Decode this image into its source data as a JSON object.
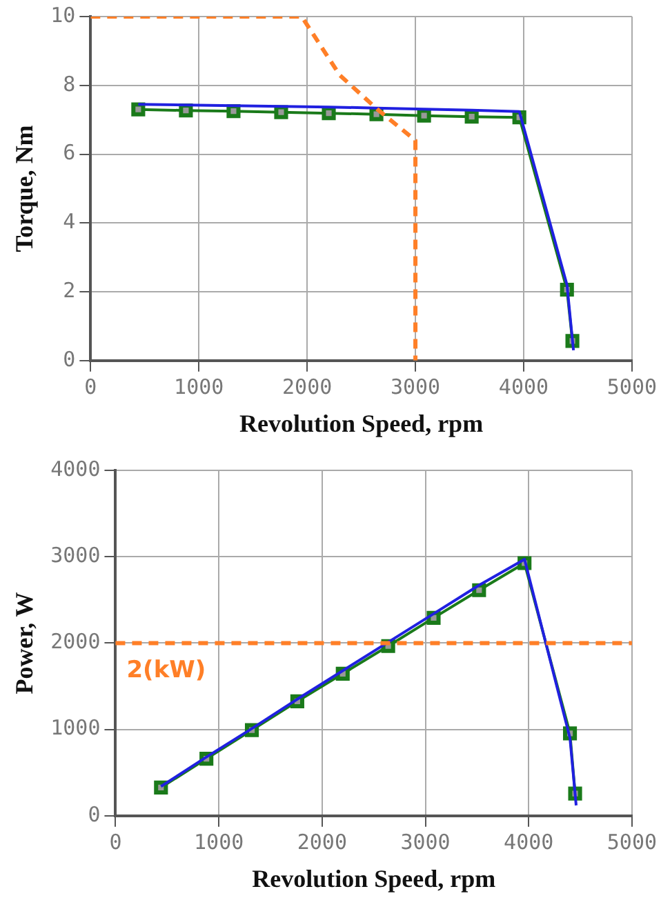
{
  "chart_data": [
    {
      "type": "line",
      "xlabel": "Revolution Speed, rpm",
      "ylabel": "Torque, Nm",
      "xlim": [
        0,
        5000
      ],
      "xticks": [
        0,
        1000,
        2000,
        3000,
        4000,
        5000
      ],
      "ylim": [
        0,
        10
      ],
      "yticks": [
        0,
        2,
        4,
        6,
        8,
        10
      ],
      "grid": true,
      "legend": false,
      "series": [
        {
          "color": "#ff7f27",
          "line_style": "dashed",
          "marker": "none",
          "x": [
            0,
            1950,
            2300,
            2650,
            3000,
            3000
          ],
          "values": [
            10,
            10,
            8.3,
            7.3,
            6.4,
            0
          ]
        },
        {
          "color": "#2020e0",
          "marker": "none",
          "x": [
            440,
            880,
            1320,
            1760,
            2200,
            2640,
            3080,
            3520,
            3960,
            4400,
            4460
          ],
          "values": [
            7.45,
            7.43,
            7.41,
            7.39,
            7.37,
            7.34,
            7.31,
            7.28,
            7.24,
            2.2,
            0.3
          ]
        },
        {
          "color": "#1a7a1a",
          "marker": "square",
          "x": [
            440,
            880,
            1320,
            1760,
            2200,
            2640,
            3080,
            3520,
            3960,
            4400,
            4450
          ],
          "values": [
            7.3,
            7.27,
            7.25,
            7.22,
            7.19,
            7.16,
            7.12,
            7.09,
            7.07,
            2.06,
            0.57
          ]
        }
      ]
    },
    {
      "type": "line",
      "xlabel": "Revolution Speed, rpm",
      "ylabel": "Power, W",
      "xlim": [
        0,
        5000
      ],
      "xticks": [
        0,
        1000,
        2000,
        3000,
        4000,
        5000
      ],
      "ylim": [
        0,
        4000
      ],
      "yticks": [
        0,
        1000,
        2000,
        3000,
        4000
      ],
      "grid": true,
      "legend": false,
      "ref_lines": [
        {
          "axis": "y",
          "value": 2000,
          "label": "2(kW)",
          "color": "#ff7f27",
          "line_style": "dashed"
        }
      ],
      "series": [
        {
          "color": "#2020e0",
          "marker": "none",
          "x": [
            440,
            880,
            1320,
            1760,
            2200,
            2640,
            3080,
            3520,
            3960,
            4400,
            4460
          ],
          "values": [
            340,
            680,
            1010,
            1350,
            1680,
            2010,
            2340,
            2670,
            2970,
            900,
            120
          ]
        },
        {
          "color": "#1a7a1a",
          "marker": "square",
          "x": [
            440,
            880,
            1320,
            1760,
            2200,
            2640,
            3080,
            3520,
            3960,
            4400,
            4450
          ],
          "values": [
            327,
            660,
            992,
            1325,
            1645,
            1965,
            2292,
            2612,
            2926,
            954,
            257
          ]
        }
      ]
    }
  ]
}
